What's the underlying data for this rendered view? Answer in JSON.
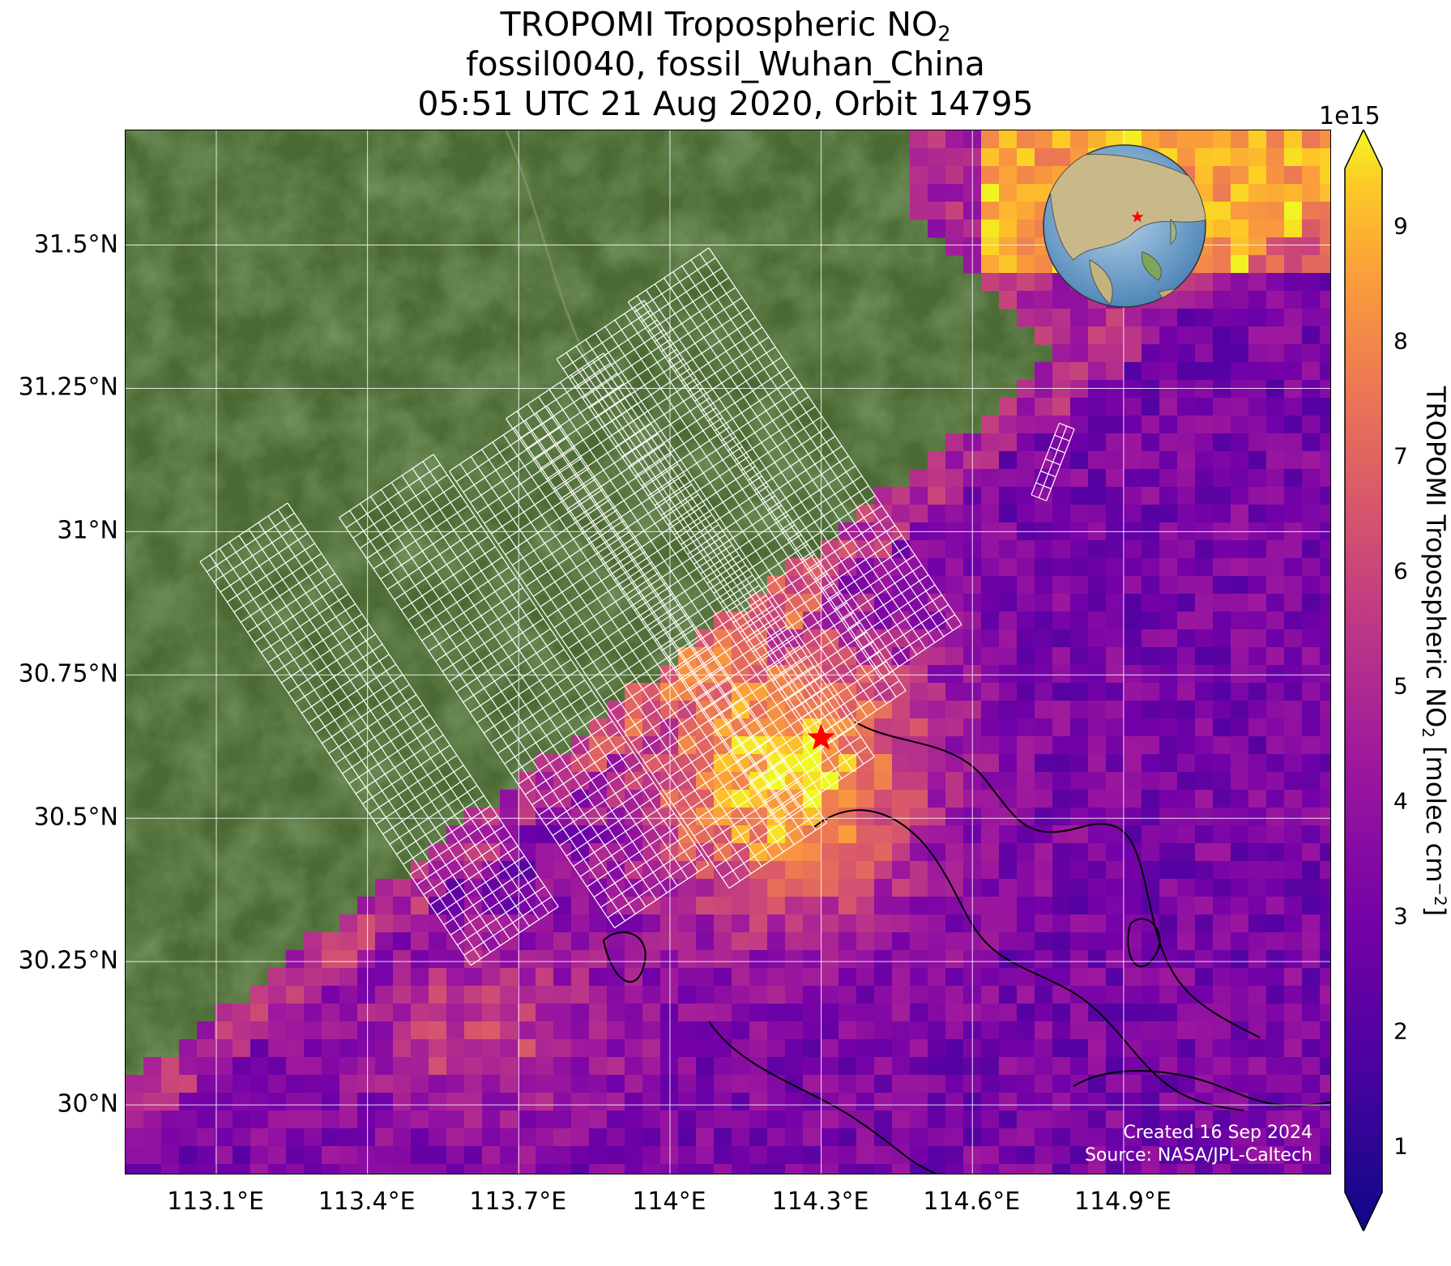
{
  "title": {
    "line1_prefix": "TROPOMI Tropospheric NO",
    "line1_sub": "2",
    "line2": "fossil0040, fossil_Wuhan_China",
    "line3": "05:51 UTC 21 Aug 2020, Orbit 14795"
  },
  "credit": {
    "created": "Created 16 Sep 2024",
    "source": "Source: NASA/JPL-Caltech"
  },
  "colorbar": {
    "exponent": "1e15",
    "label_prefix": "TROPOMI Tropospheric NO",
    "label_sub": "2",
    "label_mid": " [molec cm",
    "label_sup": "−2",
    "label_end": "]",
    "ticks": [
      "1",
      "2",
      "3",
      "4",
      "5",
      "6",
      "7",
      "8",
      "9"
    ],
    "range": [
      0.6,
      9.5
    ],
    "colormap": "plasma"
  },
  "colors": {
    "land_dark": "#2f4a22",
    "land_mid": "#4e6b34",
    "target_star": "#ff0000",
    "grid": "#ffffff"
  },
  "chart_data": {
    "type": "heatmap",
    "map": "satellite basemap with TROPOMI NO2 pixels and target-mode grid overlays",
    "xlim": [
      112.92,
      115.31
    ],
    "ylim": [
      29.88,
      31.7
    ],
    "x_ticks": [
      113.1,
      113.4,
      113.7,
      114.0,
      114.3,
      114.6,
      114.9
    ],
    "x_tick_labels": [
      "113.1°E",
      "113.4°E",
      "113.7°E",
      "114°E",
      "114.3°E",
      "114.6°E",
      "114.9°E"
    ],
    "y_ticks": [
      30.0,
      30.25,
      30.5,
      30.75,
      31.0,
      31.25,
      31.5
    ],
    "y_tick_labels": [
      "30°N",
      "30.25°N",
      "30.5°N",
      "30.75°N",
      "31°N",
      "31.25°N",
      "31.5°N"
    ],
    "target": {
      "lon": 114.3,
      "lat": 30.64,
      "name": "fossil_Wuhan_China"
    },
    "grid": "on",
    "value_range": [
      0.6,
      9.5
    ],
    "inset": "globe centered on East Asia with red star at target"
  }
}
